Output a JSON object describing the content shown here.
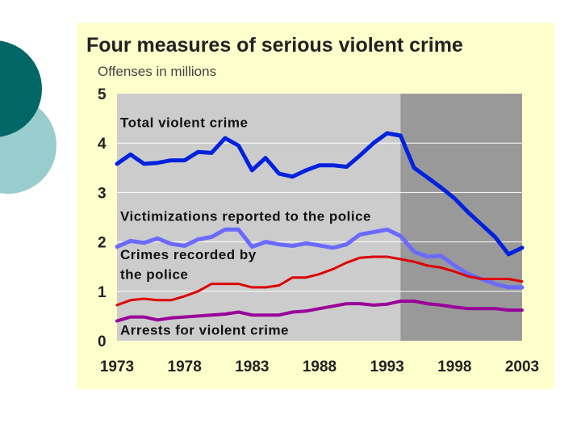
{
  "chart_data": {
    "type": "line",
    "title": "Four measures of serious violent crime",
    "ylabel": "Offenses in millions",
    "xlabel": "",
    "xlim": [
      1973,
      2003
    ],
    "ylim": [
      0,
      5
    ],
    "x_ticks": [
      1973,
      1978,
      1983,
      1988,
      1993,
      1998,
      2003
    ],
    "x_tick_labels": [
      "1973",
      "1978",
      "1983",
      "1988",
      "1993",
      "1998",
      "2003"
    ],
    "y_ticks": [
      0,
      1,
      2,
      3,
      4,
      5
    ],
    "y_tick_labels": [
      "0",
      "1",
      "2",
      "3",
      "4",
      "5"
    ],
    "grid": true,
    "shaded_region": {
      "from": 1994,
      "to": 2003,
      "color": "#999999"
    },
    "plot_background": "#cccccc",
    "x": [
      1973,
      1974,
      1975,
      1976,
      1977,
      1978,
      1979,
      1980,
      1981,
      1982,
      1983,
      1984,
      1985,
      1986,
      1987,
      1988,
      1989,
      1990,
      1991,
      1992,
      1993,
      1994,
      1995,
      1996,
      1997,
      1998,
      1999,
      2000,
      2001,
      2002,
      2003
    ],
    "series": [
      {
        "name": "Total violent crime",
        "color": "#0022dd",
        "width": 5,
        "values": [
          3.58,
          3.77,
          3.58,
          3.6,
          3.65,
          3.65,
          3.82,
          3.8,
          4.1,
          3.95,
          3.45,
          3.7,
          3.38,
          3.32,
          3.45,
          3.55,
          3.55,
          3.52,
          3.75,
          4.0,
          4.2,
          4.15,
          3.5,
          3.3,
          3.1,
          2.88,
          2.6,
          2.35,
          2.1,
          1.75,
          1.88
        ]
      },
      {
        "name": "Victimizations reported to the police",
        "color": "#6a6aff",
        "width": 5,
        "values": [
          1.9,
          2.02,
          1.98,
          2.07,
          1.96,
          1.92,
          2.05,
          2.1,
          2.25,
          2.25,
          1.9,
          2.0,
          1.95,
          1.92,
          1.97,
          1.93,
          1.88,
          1.95,
          2.15,
          2.2,
          2.25,
          2.12,
          1.8,
          1.7,
          1.72,
          1.52,
          1.35,
          1.25,
          1.15,
          1.08,
          1.08
        ]
      },
      {
        "name": "Crimes recorded by the police",
        "color": "#dd0000",
        "width": 3,
        "values": [
          0.72,
          0.82,
          0.85,
          0.82,
          0.82,
          0.9,
          1.0,
          1.15,
          1.15,
          1.15,
          1.08,
          1.08,
          1.12,
          1.28,
          1.28,
          1.35,
          1.45,
          1.58,
          1.68,
          1.7,
          1.7,
          1.65,
          1.6,
          1.52,
          1.48,
          1.4,
          1.3,
          1.25,
          1.25,
          1.25,
          1.2
        ]
      },
      {
        "name": "Arrests for violent crime",
        "color": "#990099",
        "width": 4,
        "values": [
          0.4,
          0.48,
          0.48,
          0.42,
          0.46,
          0.48,
          0.5,
          0.52,
          0.54,
          0.58,
          0.52,
          0.52,
          0.52,
          0.58,
          0.6,
          0.65,
          0.7,
          0.75,
          0.75,
          0.72,
          0.74,
          0.8,
          0.8,
          0.75,
          0.72,
          0.68,
          0.65,
          0.65,
          0.65,
          0.62,
          0.62
        ]
      }
    ],
    "annotations": [
      {
        "text": "Total violent crime",
        "x": 1973,
        "y": 4.32,
        "series": 0
      },
      {
        "text": "Victimizations reported to the police",
        "x": 1973,
        "y": 2.43,
        "series": 1
      },
      {
        "text": "Crimes recorded by",
        "x": 1973,
        "y": 1.65,
        "series": 2
      },
      {
        "text": "the police",
        "x": 1973,
        "y": 1.25,
        "series": 2
      },
      {
        "text": "Arrests for violent crime",
        "x": 1973,
        "y": 0.12,
        "series": 3
      }
    ]
  }
}
